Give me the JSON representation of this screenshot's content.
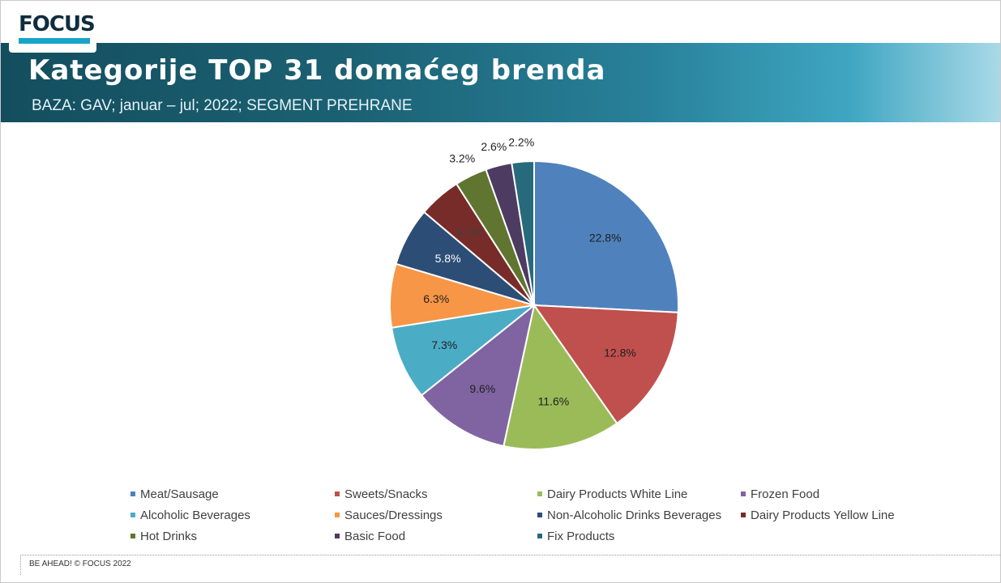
{
  "header": {
    "logo_text": "FOCUS",
    "title": "Kategorije TOP 31 domaćeg brenda",
    "subtitle": "BAZA: GAV; januar – jul; 2022; SEGMENT PREHRANE"
  },
  "footer": {
    "text": "BE AHEAD! © FOCUS 2022"
  },
  "chart_data": {
    "type": "pie",
    "title": "",
    "legend_position": "bottom",
    "unit": "%",
    "categories": [
      "Meat/Sausage",
      "Sweets/Snacks",
      "Dairy Products White Line",
      "Frozen Food",
      "Alcoholic Beverages",
      "Sauces/Dressings",
      "Non-Alcoholic Drinks Beverages",
      "Dairy Products Yellow Line",
      "Hot Drinks",
      "Basic Food",
      "Fix Products"
    ],
    "values": [
      22.8,
      12.8,
      11.6,
      9.6,
      7.3,
      6.3,
      5.8,
      4.2,
      3.2,
      2.6,
      2.2
    ],
    "labels": [
      "22.8%",
      "12.8%",
      "11.6%",
      "9.6%",
      "7.3%",
      "6.3%",
      "5.8%",
      "4.2%",
      "3.2%",
      "2.6%",
      "2.2%"
    ],
    "colors": [
      "#4f81bd",
      "#c0504d",
      "#9bbb59",
      "#8064a2",
      "#4bacc6",
      "#f79646",
      "#2c4d75",
      "#772c2a",
      "#5f7530",
      "#4d3b62",
      "#276a7c"
    ],
    "label_colors": [
      "#1f1f1f",
      "#1f1f1f",
      "#1f1f1f",
      "#1f1f1f",
      "#1f1f1f",
      "#1f1f1f",
      "#ffffff",
      "#404040",
      "#1f1f1f",
      "#1f1f1f",
      "#1f1f1f"
    ]
  }
}
